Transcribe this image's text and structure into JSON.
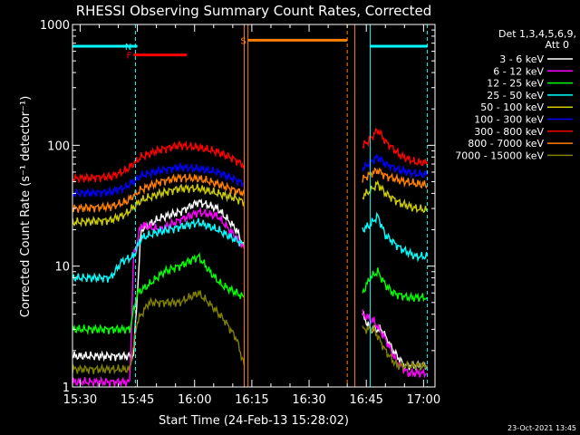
{
  "title": "RHESSI Observing Summary Count Rates, Corrected",
  "footer_date": "23-Oct-2021 13:45",
  "legend_header": [
    "Det 1,3,4,5,6,9,",
    "Att 0"
  ],
  "chart_data": {
    "type": "line",
    "title": "RHESSI Observing Summary Count Rates, Corrected",
    "xlabel": "Start Time (24-Feb-13 15:28:02)",
    "ylabel": "Corrected Count Rate (s⁻¹ detector⁻¹)",
    "yscale": "log",
    "ylim": [
      1,
      1000
    ],
    "xlim_minutes": [
      -2,
      93
    ],
    "x_tick_labels": [
      "15:30",
      "15:45",
      "16:00",
      "16:15",
      "16:30",
      "16:45",
      "17:00"
    ],
    "x_tick_minutes": [
      0,
      15,
      30,
      45,
      60,
      75,
      90
    ],
    "y_tick_labels": [
      "1",
      "10",
      "100",
      "1000"
    ],
    "y_tick_values": [
      1,
      10,
      100,
      1000
    ],
    "grid": false,
    "legend_position": "right",
    "data_gap_minutes": [
      44,
      71
    ],
    "series": [
      {
        "name": "3 - 6 keV",
        "color": "#ffffff",
        "points": [
          [
            -2,
            1.8
          ],
          [
            14,
            1.8
          ],
          [
            16,
            20
          ],
          [
            21,
            25
          ],
          [
            26,
            28
          ],
          [
            31,
            34
          ],
          [
            36,
            30
          ],
          [
            41,
            20
          ],
          [
            43,
            14
          ],
          [
            74,
            4
          ],
          [
            76,
            3
          ],
          [
            79,
            3
          ],
          [
            82,
            2
          ],
          [
            85,
            1.5
          ],
          [
            91,
            1.5
          ]
        ]
      },
      {
        "name": "6 - 12 keV",
        "color": "#ff00ff",
        "points": [
          [
            -2,
            1.1
          ],
          [
            13,
            1.1
          ],
          [
            14,
            12
          ],
          [
            16,
            22
          ],
          [
            21,
            20
          ],
          [
            26,
            24
          ],
          [
            31,
            28
          ],
          [
            36,
            26
          ],
          [
            41,
            17
          ],
          [
            43,
            14
          ],
          [
            74,
            4
          ],
          [
            77,
            3.5
          ],
          [
            80,
            2.5
          ],
          [
            83,
            1.6
          ],
          [
            86,
            1.3
          ],
          [
            91,
            1.3
          ]
        ]
      },
      {
        "name": "12 - 25 keV",
        "color": "#00ff00",
        "points": [
          [
            -2,
            3
          ],
          [
            13,
            3
          ],
          [
            15,
            6
          ],
          [
            18,
            7
          ],
          [
            22,
            9
          ],
          [
            26,
            10
          ],
          [
            31,
            12
          ],
          [
            34,
            9
          ],
          [
            37,
            7
          ],
          [
            41,
            6
          ],
          [
            43,
            5.5
          ],
          [
            74,
            6
          ],
          [
            76,
            8
          ],
          [
            78,
            9
          ],
          [
            80,
            7
          ],
          [
            82,
            6
          ],
          [
            86,
            5.5
          ],
          [
            91,
            5.5
          ]
        ]
      },
      {
        "name": "25 - 50 keV",
        "color": "#00ffff",
        "points": [
          [
            -2,
            8
          ],
          [
            8,
            8
          ],
          [
            11,
            11
          ],
          [
            14,
            12
          ],
          [
            16,
            17
          ],
          [
            20,
            19
          ],
          [
            26,
            21
          ],
          [
            31,
            23
          ],
          [
            36,
            20
          ],
          [
            40,
            17
          ],
          [
            43,
            15
          ],
          [
            74,
            20
          ],
          [
            76,
            22
          ],
          [
            78,
            26
          ],
          [
            80,
            18
          ],
          [
            84,
            14
          ],
          [
            88,
            12
          ],
          [
            91,
            12
          ]
        ]
      },
      {
        "name": "50 - 100 keV",
        "color": "#cccc00",
        "points": [
          [
            -2,
            23
          ],
          [
            8,
            24
          ],
          [
            12,
            27
          ],
          [
            16,
            35
          ],
          [
            21,
            40
          ],
          [
            26,
            44
          ],
          [
            31,
            44
          ],
          [
            36,
            40
          ],
          [
            40,
            37
          ],
          [
            43,
            34
          ],
          [
            74,
            38
          ],
          [
            76,
            42
          ],
          [
            78,
            48
          ],
          [
            80,
            40
          ],
          [
            84,
            33
          ],
          [
            88,
            30
          ],
          [
            91,
            29
          ]
        ]
      },
      {
        "name": "100 - 300 keV",
        "color": "#0000ff",
        "points": [
          [
            -2,
            40
          ],
          [
            8,
            41
          ],
          [
            12,
            45
          ],
          [
            16,
            56
          ],
          [
            21,
            62
          ],
          [
            26,
            66
          ],
          [
            31,
            64
          ],
          [
            36,
            60
          ],
          [
            40,
            53
          ],
          [
            43,
            48
          ],
          [
            74,
            64
          ],
          [
            76,
            72
          ],
          [
            78,
            80
          ],
          [
            80,
            70
          ],
          [
            84,
            62
          ],
          [
            88,
            58
          ],
          [
            91,
            57
          ]
        ]
      },
      {
        "name": "300 - 800 keV",
        "color": "#ff0000",
        "points": [
          [
            -2,
            53
          ],
          [
            8,
            55
          ],
          [
            12,
            62
          ],
          [
            16,
            80
          ],
          [
            21,
            92
          ],
          [
            26,
            100
          ],
          [
            31,
            96
          ],
          [
            36,
            88
          ],
          [
            40,
            78
          ],
          [
            43,
            68
          ],
          [
            74,
            98
          ],
          [
            76,
            112
          ],
          [
            78,
            135
          ],
          [
            80,
            108
          ],
          [
            84,
            82
          ],
          [
            88,
            72
          ],
          [
            91,
            72
          ]
        ]
      },
      {
        "name": "800 - 7000 keV",
        "color": "#ff8000",
        "points": [
          [
            -2,
            30
          ],
          [
            8,
            31
          ],
          [
            12,
            34
          ],
          [
            16,
            43
          ],
          [
            21,
            50
          ],
          [
            26,
            54
          ],
          [
            31,
            53
          ],
          [
            36,
            48
          ],
          [
            40,
            43
          ],
          [
            43,
            40
          ],
          [
            74,
            52
          ],
          [
            76,
            58
          ],
          [
            78,
            62
          ],
          [
            80,
            56
          ],
          [
            84,
            51
          ],
          [
            88,
            48
          ],
          [
            91,
            47
          ]
        ]
      },
      {
        "name": "7000 - 15000 keV",
        "color": "#808000",
        "points": [
          [
            -2,
            1.4
          ],
          [
            13,
            1.4
          ],
          [
            15,
            3.5
          ],
          [
            18,
            5
          ],
          [
            22,
            5
          ],
          [
            26,
            5
          ],
          [
            31,
            6
          ],
          [
            35,
            4.5
          ],
          [
            38,
            3.5
          ],
          [
            41,
            2.5
          ],
          [
            43,
            1.5
          ],
          [
            74,
            3
          ],
          [
            77,
            3
          ],
          [
            80,
            2
          ],
          [
            83,
            1.5
          ],
          [
            86,
            1.5
          ],
          [
            91,
            1.5
          ]
        ]
      }
    ],
    "flags": [
      {
        "label": "",
        "color": "#00ffff",
        "y": 660,
        "x_from": -2,
        "x_to": 14
      },
      {
        "label": "N",
        "color": "#00ffff",
        "y": 660,
        "x_from": 14,
        "x_to": 15
      },
      {
        "label": "F",
        "color": "#ff0000",
        "y": 560,
        "x_from": 14,
        "x_to": 28
      },
      {
        "label": "S",
        "color": "#ff8000",
        "y": 740,
        "x_from": 44,
        "x_to": 70
      },
      {
        "label": "",
        "color": "#00ffff",
        "y": 660,
        "x_from": 76,
        "x_to": 91
      }
    ],
    "markers": [
      {
        "x": 14.5,
        "color": "#00ffff",
        "style": "dashed"
      },
      {
        "x": 43,
        "color": "#ff8000",
        "style": "solid"
      },
      {
        "x": 44,
        "color": "#ff8000",
        "style": "solid"
      },
      {
        "x": 70,
        "color": "#ff8000",
        "style": "dashed"
      },
      {
        "x": 72,
        "color": "#ff8000",
        "style": "solid"
      },
      {
        "x": 76,
        "color": "#00ffff",
        "style": "solid"
      },
      {
        "x": 91,
        "color": "#00ffff",
        "style": "dashed"
      }
    ]
  }
}
